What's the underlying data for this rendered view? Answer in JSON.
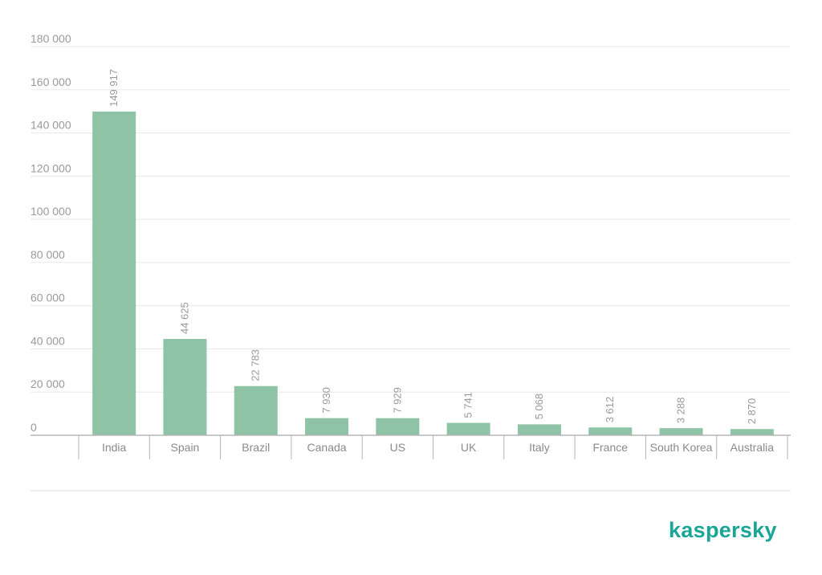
{
  "chart_data": {
    "type": "bar",
    "categories": [
      "India",
      "Spain",
      "Brazil",
      "Canada",
      "US",
      "UK",
      "Italy",
      "France",
      "South Korea",
      "Australia"
    ],
    "values": [
      149917,
      44625,
      22783,
      7930,
      7929,
      5741,
      5068,
      3612,
      3288,
      2870
    ],
    "value_labels": [
      "149 917",
      "44 625",
      "22 783",
      "7 930",
      "7 929",
      "5 741",
      "5 068",
      "3 612",
      "3 288",
      "2 870"
    ],
    "yticks": [
      0,
      20000,
      40000,
      60000,
      80000,
      100000,
      120000,
      140000,
      160000,
      180000
    ],
    "ytick_labels": [
      "0",
      "20 000",
      "40 000",
      "60 000",
      "80 000",
      "100 000",
      "120 000",
      "140 000",
      "160 000",
      "180 000"
    ],
    "ylim": [
      0,
      180000
    ],
    "grid": true,
    "legend": "none",
    "title": "",
    "xlabel": "",
    "ylabel": ""
  },
  "colors": {
    "bar": "#8fc3a5",
    "grid": "#e8e8e8",
    "axis": "#b5b5b5",
    "brand": "#1aa597"
  },
  "brand": {
    "logo_text": "kaspersky"
  }
}
